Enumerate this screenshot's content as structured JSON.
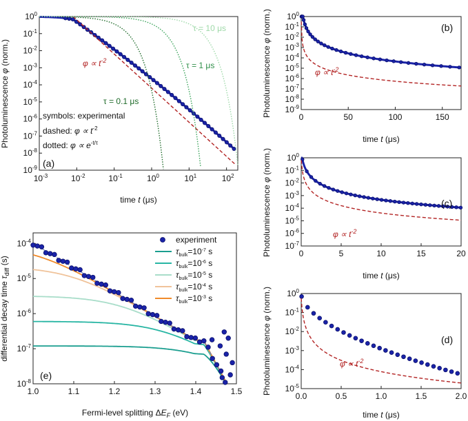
{
  "chart_data": [
    {
      "type": "line",
      "panel": "(a)",
      "xlabel": "time t (μs)",
      "ylabel": "Photoluminescence φ (norm.)",
      "xscale": "log",
      "yscale": "log",
      "xlim": [
        0.001,
        200
      ],
      "ylim": [
        1e-09,
        1
      ],
      "xticks": [
        "10-3",
        "10-2",
        "10-1",
        "100",
        "101",
        "102"
      ],
      "yticks": [
        "10-9",
        "10-8",
        "10-7",
        "10-6",
        "10-5",
        "10-4",
        "10-3",
        "10-2",
        "10-1",
        "100"
      ],
      "series": [
        {
          "name": "symbols: experimental",
          "style": "circles",
          "color": "#1a23a8",
          "x": [
            0.001,
            0.003,
            0.008,
            0.02,
            0.05,
            0.1,
            0.2,
            0.5,
            1,
            2,
            5,
            10,
            20,
            50,
            100,
            150
          ],
          "y": [
            1,
            0.8,
            0.55,
            0.25,
            0.12,
            0.05,
            0.015,
            0.0012,
            0.00012,
            1e-05,
            1.3e-06,
            2e-07,
            5e-08,
            8e-09,
            3e-09,
            1.9e-09
          ]
        },
        {
          "name": "dashed: φ ∝ t-2",
          "style": "dashed",
          "color": "#b22222",
          "x": [
            0.008,
            100
          ],
          "y": [
            1,
            6.4e-09
          ]
        },
        {
          "name": "τ = 0.1 μs",
          "style": "dotted",
          "color": "#1f6b2a",
          "tau": 0.1
        },
        {
          "name": "τ = 1 μs",
          "style": "dotted",
          "color": "#3aa35a",
          "tau": 1
        },
        {
          "name": "τ = 10 μs",
          "style": "dotted",
          "color": "#9fd9a9",
          "tau": 10
        }
      ],
      "annotations": {
        "law": "φ ∝ t",
        "law_exp": "-2",
        "tau10": "τ = 10 μs",
        "tau1": "τ = 1 μs",
        "tau01": "τ = 0.1 μs",
        "legend1": "symbols: experimental",
        "legend2": "dashed: ",
        "legend2b": "φ ∝ t",
        "legend2exp": "-2",
        "legend3": "dotted: ",
        "legend3b": "φ ∝ e",
        "legend3exp": "-t/τ"
      }
    },
    {
      "type": "line",
      "panel": "(b)",
      "xlabel": "time t (μs)",
      "ylabel": "Photoluminescence φ (norm.)",
      "xscale": "linear",
      "yscale": "log",
      "xlim": [
        0,
        170
      ],
      "ylim": [
        1e-09,
        1
      ],
      "xticks": [
        "0",
        "50",
        "100",
        "150"
      ],
      "yticks": [
        "10-9",
        "10-8",
        "10-7",
        "10-6",
        "10-5",
        "10-4",
        "10-3",
        "10-2",
        "10-1",
        "100"
      ],
      "annotation": "φ ∝ t",
      "annotation_exp": "-2"
    },
    {
      "type": "line",
      "panel": "(c)",
      "xlabel": "time t (μs)",
      "ylabel": "Photoluminescence φ (norm.)",
      "xscale": "linear",
      "yscale": "log",
      "xlim": [
        0,
        20
      ],
      "ylim": [
        1e-07,
        1
      ],
      "xticks": [
        "0",
        "5",
        "10",
        "15",
        "20"
      ],
      "yticks": [
        "10-7",
        "10-6",
        "10-5",
        "10-4",
        "10-3",
        "10-2",
        "10-1",
        "100"
      ],
      "annotation": "φ ∝ t",
      "annotation_exp": "-2"
    },
    {
      "type": "line",
      "panel": "(d)",
      "xlabel": "time t (μs)",
      "ylabel": "Photoluminescence φ (norm.)",
      "xscale": "linear",
      "yscale": "log",
      "xlim": [
        0,
        2
      ],
      "ylim": [
        1e-05,
        1
      ],
      "xticks": [
        "0.0",
        "0.5",
        "1.0",
        "1.5",
        "2.0"
      ],
      "yticks": [
        "10-5",
        "10-4",
        "10-3",
        "10-2",
        "10-1",
        "100"
      ],
      "annotation": "φ ∝ t",
      "annotation_exp": "-2"
    },
    {
      "type": "line",
      "panel": "(e)",
      "xlabel": "Fermi-level splitting ΔEF (eV)",
      "ylabel": "differential decay time τdiff (s)",
      "xscale": "linear",
      "yscale": "log",
      "xlim": [
        1.0,
        1.5
      ],
      "ylim": [
        1e-08,
        0.0002
      ],
      "xticks": [
        "1.0",
        "1.1",
        "1.2",
        "1.3",
        "1.4",
        "1.5"
      ],
      "yticks": [
        "10-8",
        "10-7",
        "10-6",
        "10-5",
        "10-4"
      ],
      "legend": [
        {
          "label": "experiment",
          "color": "#1a23a8"
        },
        {
          "label": "τbulk=10-7 s",
          "color": "#1a9e8f"
        },
        {
          "label": "τbulk=10-6 s",
          "color": "#27b5a3"
        },
        {
          "label": "τbulk=10-5 s",
          "color": "#a8ddc9"
        },
        {
          "label": "τbulk=10-4 s",
          "color": "#f0c39a"
        },
        {
          "label": "τbulk=10-3 s",
          "color": "#f08a2a"
        }
      ],
      "series": [
        {
          "name": "experiment",
          "x": [
            1.0,
            1.05,
            1.1,
            1.15,
            1.2,
            1.25,
            1.3,
            1.35,
            1.4,
            1.43,
            1.46,
            1.48
          ],
          "y": [
            0.0001,
            4e-05,
            1.5e-05,
            6e-06,
            2.5e-06,
            1e-06,
            6e-07,
            3e-07,
            2.5e-07,
            1.5e-07,
            5e-08,
            2e-08
          ]
        },
        {
          "name": "τbulk=10-7 s",
          "plateau": 1.2e-07
        },
        {
          "name": "τbulk=10-6 s",
          "plateau": 6e-07
        },
        {
          "name": "τbulk=10-5 s",
          "plateau": 3.2e-06
        },
        {
          "name": "τbulk=10-4 s",
          "plateau": 2.2e-05
        },
        {
          "name": "τbulk=10-3 s",
          "plateau": 9e-05
        }
      ]
    }
  ]
}
